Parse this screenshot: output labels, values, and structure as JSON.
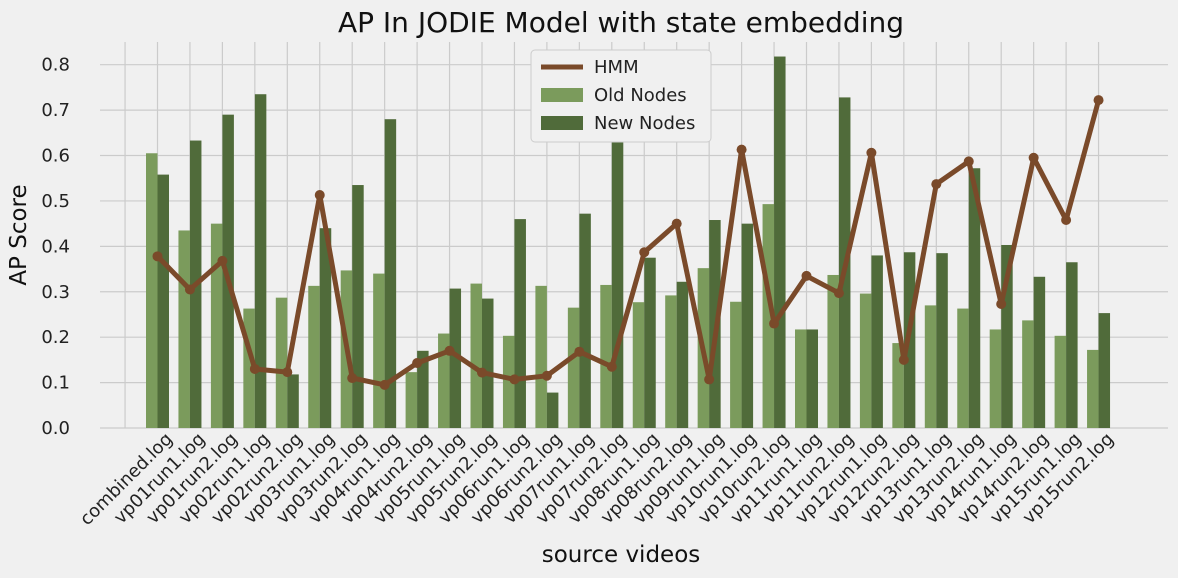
{
  "chart_data": {
    "type": "bar",
    "title": "AP In JODIE Model with state embedding",
    "xlabel": "source videos",
    "ylabel": "AP Score",
    "ylim": [
      0,
      0.85
    ],
    "yticks": [
      "0.0",
      "0.1",
      "0.2",
      "0.3",
      "0.4",
      "0.5",
      "0.6",
      "0.7",
      "0.8"
    ],
    "grid": true,
    "legend_position": "top-center",
    "categories": [
      "combined.log",
      "vp01run1.log",
      "vp01run2.log",
      "vp02run1.log",
      "vp02run2.log",
      "vp03run1.log",
      "vp03run2.log",
      "vp04run1.log",
      "vp04run2.log",
      "vp05run1.log",
      "vp05run2.log",
      "vp06run1.log",
      "vp06run2.log",
      "vp07run1.log",
      "vp07run2.log",
      "vp08run1.log",
      "vp08run2.log",
      "vp09run1.log",
      "vp10run1.log",
      "vp10run2.log",
      "vp11run1.log",
      "vp11run2.log",
      "vp12run1.log",
      "vp12run2.log",
      "vp13run1.log",
      "vp13run2.log",
      "vp14run1.log",
      "vp14run2.log",
      "vp15run1.log",
      "vp15run2.log"
    ],
    "series": [
      {
        "name": "HMM",
        "kind": "line",
        "color": "#7a4a2a",
        "values": [
          0.378,
          0.305,
          0.368,
          0.13,
          0.123,
          0.513,
          0.11,
          0.095,
          0.143,
          0.17,
          0.122,
          0.107,
          0.115,
          0.168,
          0.135,
          0.387,
          0.45,
          0.107,
          0.613,
          0.23,
          0.335,
          0.297,
          0.606,
          0.15,
          0.537,
          0.587,
          0.273,
          0.595,
          0.458,
          0.722
        ]
      },
      {
        "name": "Old Nodes",
        "kind": "bar",
        "color": "#7b9b5c",
        "values": [
          0.605,
          0.435,
          0.45,
          0.263,
          0.287,
          0.313,
          0.347,
          0.34,
          0.123,
          0.208,
          0.318,
          0.203,
          0.313,
          0.265,
          0.315,
          0.277,
          0.292,
          0.352,
          0.278,
          0.493,
          0.217,
          0.337,
          0.296,
          0.187,
          0.27,
          0.263,
          0.217,
          0.237,
          0.203,
          0.172
        ]
      },
      {
        "name": "New Nodes",
        "kind": "bar",
        "color": "#506b3a",
        "values": [
          0.558,
          0.633,
          0.69,
          0.735,
          0.118,
          0.44,
          0.535,
          0.68,
          0.17,
          0.307,
          0.285,
          0.46,
          0.078,
          0.472,
          0.775,
          0.375,
          0.322,
          0.458,
          0.45,
          0.818,
          0.217,
          0.728,
          0.38,
          0.387,
          0.385,
          0.572,
          0.403,
          0.333,
          0.365,
          0.253
        ]
      }
    ]
  }
}
